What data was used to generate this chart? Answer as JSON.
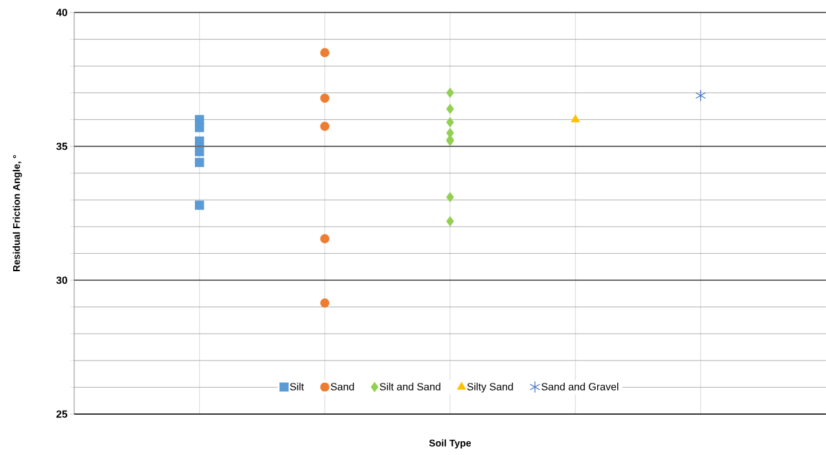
{
  "chart_data": {
    "type": "scatter",
    "xlabel": "Soil Type",
    "ylabel": "Residual Friction Angle, °",
    "categories": [
      null,
      null,
      null,
      null,
      null
    ],
    "ylim": [
      25,
      40
    ],
    "yticks": [
      {
        "value": 25,
        "label": "25"
      },
      {
        "value": 26,
        "label": null
      },
      {
        "value": 27,
        "label": null
      },
      {
        "value": 28,
        "label": null
      },
      {
        "value": 29,
        "label": null
      },
      {
        "value": 30,
        "label": "30"
      },
      {
        "value": 31,
        "label": null
      },
      {
        "value": 32,
        "label": null
      },
      {
        "value": 33,
        "label": null
      },
      {
        "value": 34,
        "label": null
      },
      {
        "value": 35,
        "label": "35"
      },
      {
        "value": 36,
        "label": null
      },
      {
        "value": 37,
        "label": null
      },
      {
        "value": 38,
        "label": null
      },
      {
        "value": 39,
        "label": null
      },
      {
        "value": 40,
        "label": "40"
      }
    ],
    "grid": true,
    "legend": "bottom",
    "series": [
      {
        "name": "Silt",
        "color": "#5b9bd5",
        "marker": "square",
        "values": [
          36.0,
          null,
          null,
          null,
          null
        ]
      },
      {
        "color": "#5b9bd5",
        "marker": "square",
        "values": [
          35.7,
          null,
          null,
          null,
          null
        ]
      },
      {
        "color": "#5b9bd5",
        "marker": "square",
        "values": [
          35.2,
          null,
          null,
          null,
          null
        ]
      },
      {
        "color": "#5b9bd5",
        "marker": "square",
        "values": [
          34.8,
          null,
          null,
          null,
          null
        ]
      },
      {
        "color": "#5b9bd5",
        "marker": "square",
        "values": [
          34.4,
          null,
          null,
          null,
          null
        ]
      },
      {
        "color": "#5b9bd5",
        "marker": "square",
        "values": [
          32.8,
          null,
          null,
          null,
          null
        ]
      },
      {
        "name": "Sand",
        "color": "#ed7d31",
        "marker": "circle",
        "values": [
          null,
          38.5,
          null,
          null,
          null
        ]
      },
      {
        "color": "#ed7d31",
        "marker": "circle",
        "values": [
          null,
          36.8,
          null,
          null,
          null
        ]
      },
      {
        "color": "#ed7d31",
        "marker": "circle",
        "values": [
          null,
          35.75,
          null,
          null,
          null
        ]
      },
      {
        "color": "#ed7d31",
        "marker": "circle",
        "values": [
          null,
          31.55,
          null,
          null,
          null
        ]
      },
      {
        "color": "#ed7d31",
        "marker": "circle",
        "values": [
          null,
          29.15,
          null,
          null,
          null
        ]
      },
      {
        "name": "Silt and Sand",
        "color": "#92d050",
        "marker": "diamond",
        "values": [
          null,
          null,
          37.0,
          null,
          null
        ]
      },
      {
        "color": "#92d050",
        "marker": "diamond",
        "values": [
          null,
          null,
          36.4,
          null,
          null
        ]
      },
      {
        "color": "#92d050",
        "marker": "diamond",
        "values": [
          null,
          null,
          35.9,
          null,
          null
        ]
      },
      {
        "color": "#92d050",
        "marker": "diamond",
        "values": [
          null,
          null,
          35.5,
          null,
          null
        ]
      },
      {
        "color": "#92d050",
        "marker": "diamond",
        "values": [
          null,
          null,
          35.25,
          null,
          null
        ]
      },
      {
        "color": "#92d050",
        "marker": "diamond",
        "values": [
          null,
          null,
          35.2,
          null,
          null
        ]
      },
      {
        "color": "#92d050",
        "marker": "diamond",
        "values": [
          null,
          null,
          33.1,
          null,
          null
        ]
      },
      {
        "color": "#92d050",
        "marker": "diamond",
        "values": [
          null,
          null,
          32.2,
          null,
          null
        ]
      },
      {
        "name": "Silty Sand",
        "color": "#ffc000",
        "marker": "triangle",
        "values": [
          null,
          null,
          null,
          36.0,
          null
        ]
      },
      {
        "name": "Sand and Gravel",
        "color": "#4472c4",
        "marker": "cross",
        "values": [
          null,
          null,
          null,
          null,
          36.9
        ]
      }
    ]
  }
}
